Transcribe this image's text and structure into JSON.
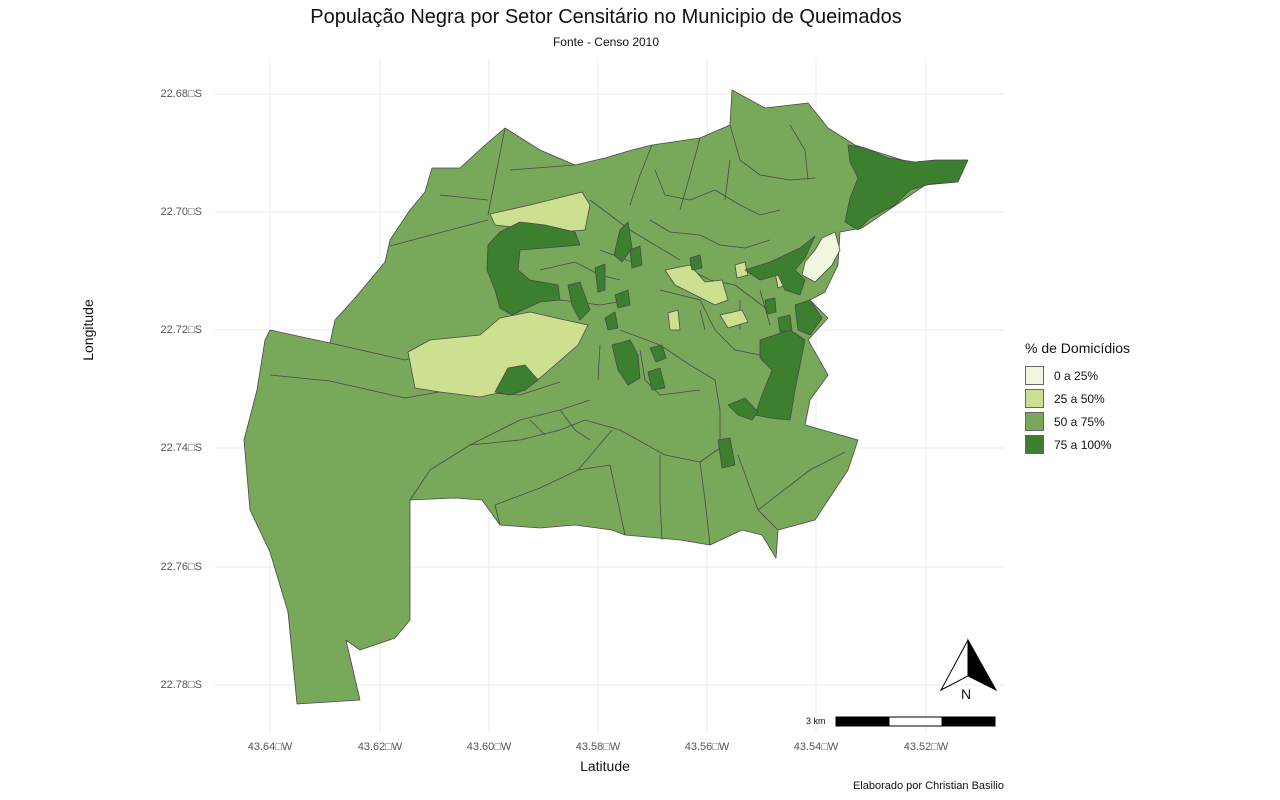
{
  "title": "População Negra por Setor Censitário no Municipio de Queimados",
  "subtitle": "Fonte - Censo 2010",
  "xaxis_title": "Latitude",
  "yaxis_title": "Longitude",
  "caption": "Elaborado por Christian Basilio",
  "y_ticks": [
    "22.68□S",
    "22.70□S",
    "22.72□S",
    "22.74□S",
    "22.76□S",
    "22.78□S"
  ],
  "x_ticks": [
    "43.64□W",
    "43.62□W",
    "43.60□W",
    "43.58□W",
    "43.56□W",
    "43.54□W",
    "43.52□W"
  ],
  "legend": {
    "title": "% de Domicídios",
    "items": [
      {
        "label": "0 a 25%",
        "color": "#f1f7de"
      },
      {
        "label": "25 a 50%",
        "color": "#cde08f"
      },
      {
        "label": "50 a 75%",
        "color": "#78a85a"
      },
      {
        "label": "75 a 100%",
        "color": "#3b7f2f"
      }
    ]
  },
  "scale_bar": {
    "label": "3 km"
  },
  "north_arrow": {
    "label": "N"
  },
  "colors": {
    "background": "#ffffff",
    "grid": "#ebebeb",
    "border": "#4a4a4a"
  }
}
